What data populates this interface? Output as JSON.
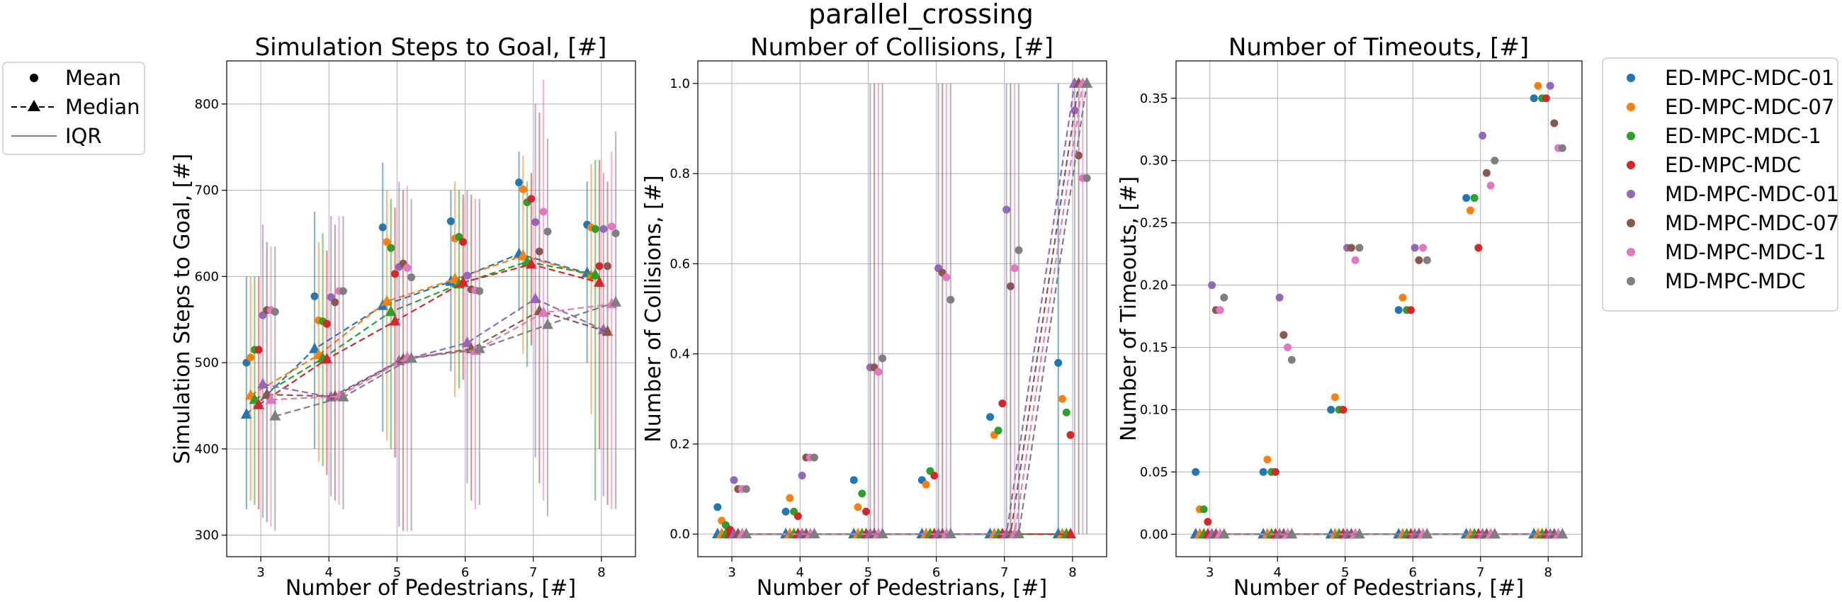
{
  "figure": {
    "suptitle": "parallel_crossing"
  },
  "style_legend": {
    "items": [
      {
        "label": "Mean",
        "marker": "dot"
      },
      {
        "label": "Median",
        "marker": "triangle-dashed"
      },
      {
        "label": "IQR",
        "marker": "line"
      }
    ]
  },
  "series_legend": {
    "items": [
      {
        "name": "ED-MPC-MDC-01",
        "color": "#1f77b4"
      },
      {
        "name": "ED-MPC-MDC-07",
        "color": "#ff7f0e"
      },
      {
        "name": "ED-MPC-MDC-1",
        "color": "#2ca02c"
      },
      {
        "name": "ED-MPC-MDC",
        "color": "#d62728"
      },
      {
        "name": "MD-MPC-MDC-01",
        "color": "#9467bd"
      },
      {
        "name": "MD-MPC-MDC-07",
        "color": "#8c564b"
      },
      {
        "name": "MD-MPC-MDC-1",
        "color": "#e377c2"
      },
      {
        "name": "MD-MPC-MDC",
        "color": "#7f7f7f"
      }
    ]
  },
  "chart_data": [
    {
      "type": "scatter",
      "title": "Simulation Steps to Goal, [#]",
      "xlabel": "Number of Pedestrians, [#]",
      "ylabel": "Simulation Steps to Goal, [#]",
      "x_ticks": [
        3,
        4,
        5,
        6,
        7,
        8
      ],
      "y_ticks": [
        300,
        400,
        500,
        600,
        700,
        800
      ],
      "y_tick_labels": [
        "300",
        "400",
        "500",
        "600",
        "700",
        "800"
      ],
      "xlim": [
        2.5,
        8.5
      ],
      "ylim": [
        275,
        850
      ],
      "grid": true,
      "series": [
        {
          "name": "ED-MPC-MDC-01",
          "mean": [
            500,
            577,
            657,
            664,
            709,
            660
          ],
          "median": [
            440,
            516,
            566,
            594,
            626,
            604
          ],
          "q1": [
            330,
            400,
            420,
            490,
            560,
            500
          ],
          "q3": [
            600,
            675,
            732,
            700,
            745,
            710
          ]
        },
        {
          "name": "ED-MPC-MDC-07",
          "mean": [
            506,
            549,
            640,
            644,
            701,
            657
          ],
          "median": [
            462,
            509,
            571,
            597,
            624,
            601
          ],
          "q1": [
            340,
            385,
            410,
            460,
            510,
            440
          ],
          "q3": [
            600,
            640,
            700,
            710,
            740,
            730
          ]
        },
        {
          "name": "ED-MPC-MDC-1",
          "mean": [
            515,
            548,
            633,
            646,
            686,
            655
          ],
          "median": [
            457,
            505,
            559,
            591,
            617,
            602
          ],
          "q1": [
            335,
            380,
            400,
            470,
            495,
            340
          ],
          "q3": [
            600,
            650,
            690,
            700,
            710,
            735
          ]
        },
        {
          "name": "ED-MPC-MDC",
          "mean": [
            515,
            545,
            603,
            640,
            690,
            612
          ],
          "median": [
            451,
            504,
            548,
            593,
            614,
            593
          ],
          "q1": [
            330,
            370,
            390,
            480,
            520,
            400
          ],
          "q3": [
            600,
            630,
            680,
            695,
            720,
            735
          ]
        },
        {
          "name": "MD-MPC-MDC-01",
          "mean": [
            555,
            576,
            611,
            601,
            663,
            655
          ],
          "median": [
            475,
            460,
            502,
            523,
            574,
            538
          ],
          "q1": [
            320,
            345,
            310,
            360,
            390,
            345
          ],
          "q3": [
            660,
            670,
            710,
            700,
            800,
            720
          ]
        },
        {
          "name": "MD-MPC-MDC-07",
          "mean": [
            561,
            570,
            615,
            585,
            629,
            612
          ],
          "median": [
            463,
            461,
            504,
            516,
            560,
            536
          ],
          "q1": [
            315,
            340,
            305,
            340,
            360,
            335
          ],
          "q3": [
            640,
            660,
            700,
            695,
            790,
            710
          ]
        },
        {
          "name": "MD-MPC-MDC-1",
          "mean": [
            561,
            583,
            610,
            584,
            675,
            658
          ],
          "median": [
            457,
            461,
            506,
            514,
            558,
            568
          ],
          "q1": [
            310,
            335,
            305,
            330,
            340,
            330
          ],
          "q3": [
            635,
            670,
            705,
            690,
            828,
            745
          ]
        },
        {
          "name": "MD-MPC-MDC",
          "mean": [
            559,
            583,
            599,
            583,
            652,
            650
          ],
          "median": [
            438,
            460,
            505,
            516,
            544,
            570
          ],
          "q1": [
            305,
            330,
            305,
            335,
            322,
            330
          ],
          "q3": [
            635,
            670,
            690,
            690,
            760,
            768
          ]
        }
      ]
    },
    {
      "type": "scatter",
      "title": "Number of Collisions, [#]",
      "xlabel": "Number of Pedestrians, [#]",
      "ylabel": "Number of Collisions, [#]",
      "x_ticks": [
        3,
        4,
        5,
        6,
        7,
        8
      ],
      "y_ticks": [
        0.0,
        0.2,
        0.4,
        0.6,
        0.8,
        1.0
      ],
      "y_tick_labels": [
        "0.0",
        "0.2",
        "0.4",
        "0.6",
        "0.8",
        "1.0"
      ],
      "xlim": [
        2.5,
        8.5
      ],
      "ylim": [
        -0.05,
        1.05
      ],
      "grid": true,
      "series": [
        {
          "name": "ED-MPC-MDC-01",
          "mean": [
            0.06,
            0.05,
            0.12,
            0.12,
            0.26,
            0.38
          ],
          "median": [
            0,
            0,
            0,
            0,
            0,
            0
          ],
          "q1": [
            0,
            0,
            0,
            0,
            0,
            0
          ],
          "q3": [
            0,
            0,
            0,
            0,
            0,
            1
          ]
        },
        {
          "name": "ED-MPC-MDC-07",
          "mean": [
            0.03,
            0.08,
            0.06,
            0.11,
            0.22,
            0.3
          ],
          "median": [
            0,
            0,
            0,
            0,
            0,
            0
          ],
          "q1": [
            0,
            0,
            0,
            0,
            0,
            0
          ],
          "q3": [
            0,
            0,
            0,
            0,
            0,
            0
          ]
        },
        {
          "name": "ED-MPC-MDC-1",
          "mean": [
            0.02,
            0.05,
            0.09,
            0.14,
            0.23,
            0.27
          ],
          "median": [
            0,
            0,
            0,
            0,
            0,
            0
          ],
          "q1": [
            0,
            0,
            0,
            0,
            0,
            0
          ],
          "q3": [
            0,
            0,
            0,
            0,
            0,
            0
          ]
        },
        {
          "name": "ED-MPC-MDC",
          "mean": [
            0.01,
            0.04,
            0.05,
            0.13,
            0.29,
            0.22
          ],
          "median": [
            0,
            0,
            0,
            0,
            0,
            0
          ],
          "q1": [
            0,
            0,
            0,
            0,
            0,
            0
          ],
          "q3": [
            0,
            0,
            0,
            0,
            0,
            0
          ]
        },
        {
          "name": "MD-MPC-MDC-01",
          "mean": [
            0.12,
            0.13,
            0.37,
            0.59,
            0.72,
            0.94
          ],
          "median": [
            0,
            0,
            0,
            0,
            0,
            1
          ],
          "q1": [
            0,
            0,
            0,
            0,
            0,
            0
          ],
          "q3": [
            0,
            0,
            1,
            1,
            1,
            1
          ]
        },
        {
          "name": "MD-MPC-MDC-07",
          "mean": [
            0.1,
            0.17,
            0.37,
            0.58,
            0.55,
            0.84
          ],
          "median": [
            0,
            0,
            0,
            0,
            0,
            1
          ],
          "q1": [
            0,
            0,
            0,
            0,
            0,
            0
          ],
          "q3": [
            0,
            0,
            1,
            1,
            1,
            1
          ]
        },
        {
          "name": "MD-MPC-MDC-1",
          "mean": [
            0.1,
            0.17,
            0.36,
            0.57,
            0.59,
            0.79
          ],
          "median": [
            0,
            0,
            0,
            0,
            0,
            1
          ],
          "q1": [
            0,
            0,
            0,
            0,
            0,
            0
          ],
          "q3": [
            0,
            0,
            1,
            1,
            1,
            1
          ]
        },
        {
          "name": "MD-MPC-MDC",
          "mean": [
            0.1,
            0.17,
            0.39,
            0.52,
            0.63,
            0.79
          ],
          "median": [
            0,
            0,
            0,
            0,
            0,
            1
          ],
          "q1": [
            0,
            0,
            0,
            0,
            0,
            0
          ],
          "q3": [
            0,
            0,
            1,
            1,
            1,
            1
          ]
        }
      ]
    },
    {
      "type": "scatter",
      "title": "Number of Timeouts, [#]",
      "xlabel": "Number of Pedestrians, [#]",
      "ylabel": "Number of Timeouts, [#]",
      "x_ticks": [
        3,
        4,
        5,
        6,
        7,
        8
      ],
      "y_ticks": [
        0.0,
        0.05,
        0.1,
        0.15,
        0.2,
        0.25,
        0.3,
        0.35
      ],
      "y_tick_labels": [
        "0.00",
        "0.05",
        "0.10",
        "0.15",
        "0.20",
        "0.25",
        "0.30",
        "0.35"
      ],
      "xlim": [
        2.5,
        8.5
      ],
      "ylim": [
        -0.018,
        0.38
      ],
      "grid": true,
      "series": [
        {
          "name": "ED-MPC-MDC-01",
          "mean": [
            0.05,
            0.05,
            0.1,
            0.18,
            0.27,
            0.35
          ],
          "median": [
            0,
            0,
            0,
            0,
            0,
            0
          ],
          "q1": [
            0,
            0,
            0,
            0,
            0,
            0
          ],
          "q3": [
            0,
            0,
            0,
            0,
            0,
            0
          ]
        },
        {
          "name": "ED-MPC-MDC-07",
          "mean": [
            0.02,
            0.06,
            0.11,
            0.19,
            0.26,
            0.36
          ],
          "median": [
            0,
            0,
            0,
            0,
            0,
            0
          ],
          "q1": [
            0,
            0,
            0,
            0,
            0,
            0
          ],
          "q3": [
            0,
            0,
            0,
            0,
            0,
            0
          ]
        },
        {
          "name": "ED-MPC-MDC-1",
          "mean": [
            0.02,
            0.05,
            0.1,
            0.18,
            0.27,
            0.35
          ],
          "median": [
            0,
            0,
            0,
            0,
            0,
            0
          ],
          "q1": [
            0,
            0,
            0,
            0,
            0,
            0
          ],
          "q3": [
            0,
            0,
            0,
            0,
            0,
            0
          ]
        },
        {
          "name": "ED-MPC-MDC",
          "mean": [
            0.01,
            0.05,
            0.1,
            0.18,
            0.23,
            0.35
          ],
          "median": [
            0,
            0,
            0,
            0,
            0,
            0
          ],
          "q1": [
            0,
            0,
            0,
            0,
            0,
            0
          ],
          "q3": [
            0,
            0,
            0,
            0,
            0,
            0
          ]
        },
        {
          "name": "MD-MPC-MDC-01",
          "mean": [
            0.2,
            0.19,
            0.23,
            0.23,
            0.32,
            0.36
          ],
          "median": [
            0,
            0,
            0,
            0,
            0,
            0
          ],
          "q1": [
            0,
            0,
            0,
            0,
            0,
            0
          ],
          "q3": [
            0,
            0,
            0,
            0,
            0,
            0
          ]
        },
        {
          "name": "MD-MPC-MDC-07",
          "mean": [
            0.18,
            0.16,
            0.23,
            0.22,
            0.29,
            0.33
          ],
          "median": [
            0,
            0,
            0,
            0,
            0,
            0
          ],
          "q1": [
            0,
            0,
            0,
            0,
            0,
            0
          ],
          "q3": [
            0,
            0,
            0,
            0,
            0,
            0
          ]
        },
        {
          "name": "MD-MPC-MDC-1",
          "mean": [
            0.18,
            0.15,
            0.22,
            0.23,
            0.28,
            0.31
          ],
          "median": [
            0,
            0,
            0,
            0,
            0,
            0
          ],
          "q1": [
            0,
            0,
            0,
            0,
            0,
            0
          ],
          "q3": [
            0,
            0,
            0,
            0,
            0,
            0
          ]
        },
        {
          "name": "MD-MPC-MDC",
          "mean": [
            0.19,
            0.14,
            0.23,
            0.22,
            0.3,
            0.31
          ],
          "median": [
            0,
            0,
            0,
            0,
            0,
            0
          ],
          "q1": [
            0,
            0,
            0,
            0,
            0,
            0
          ],
          "q3": [
            0,
            0,
            0,
            0,
            0,
            0
          ]
        }
      ]
    }
  ]
}
